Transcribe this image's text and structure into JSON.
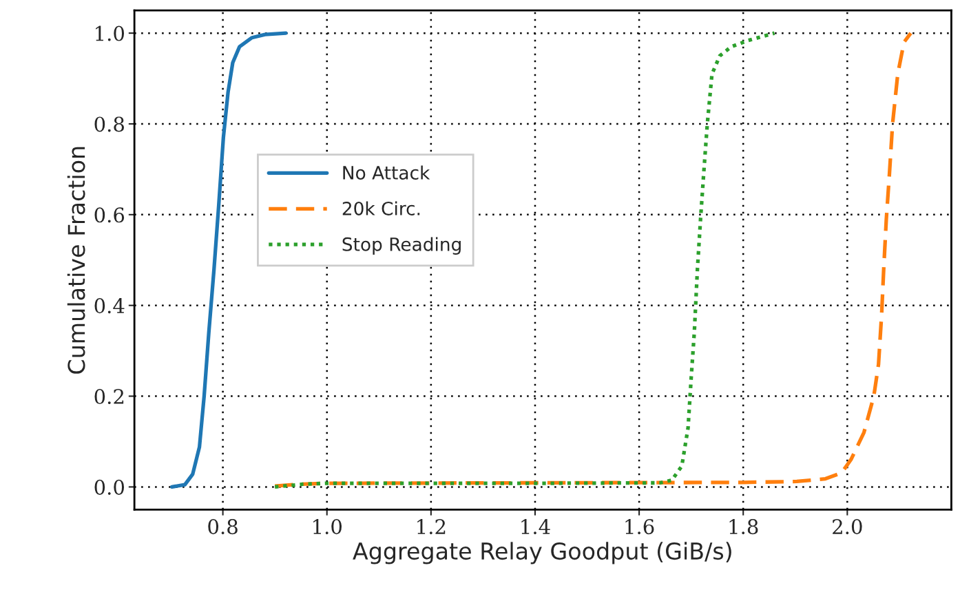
{
  "chart_data": {
    "type": "line",
    "xlabel": "Aggregate Relay Goodput (GiB/s)",
    "ylabel": "Cumulative Fraction",
    "series": [
      {
        "name": "No Attack",
        "color": "#1f77b4",
        "line_style": "solid",
        "x": [
          0.702,
          0.727,
          0.742,
          0.755,
          0.764,
          0.773,
          0.783,
          0.792,
          0.801,
          0.81,
          0.819,
          0.832,
          0.856,
          0.881,
          0.921
        ],
        "values": [
          0.0,
          0.005,
          0.028,
          0.088,
          0.2,
          0.34,
          0.48,
          0.62,
          0.77,
          0.87,
          0.935,
          0.97,
          0.99,
          0.997,
          1.0
        ]
      },
      {
        "name": "20k Circ.",
        "color": "#ff7f0e",
        "line_style": "dashed",
        "x": [
          0.9,
          0.95,
          1.0,
          1.4,
          1.8,
          1.903,
          1.958,
          1.989,
          2.007,
          2.032,
          2.051,
          2.06,
          2.066,
          2.07,
          2.075,
          2.081,
          2.087,
          2.097,
          2.109,
          2.122
        ],
        "values": [
          0.002,
          0.006,
          0.008,
          0.009,
          0.01,
          0.012,
          0.018,
          0.031,
          0.06,
          0.12,
          0.2,
          0.27,
          0.38,
          0.48,
          0.59,
          0.69,
          0.8,
          0.91,
          0.98,
          1.0
        ]
      },
      {
        "name": "Stop Reading",
        "color": "#2ca02c",
        "line_style": "dotted",
        "x": [
          0.9,
          0.954,
          1.0,
          1.4,
          1.64,
          1.663,
          1.682,
          1.694,
          1.7,
          1.706,
          1.712,
          1.718,
          1.724,
          1.731,
          1.74,
          1.755,
          1.777,
          1.81,
          1.86
        ],
        "values": [
          0.0,
          0.006,
          0.008,
          0.008,
          0.009,
          0.015,
          0.046,
          0.13,
          0.24,
          0.34,
          0.48,
          0.59,
          0.69,
          0.8,
          0.91,
          0.95,
          0.97,
          0.984,
          1.0
        ]
      }
    ],
    "xlim": [
      0.63,
      2.2
    ],
    "ylim": [
      -0.05,
      1.05
    ],
    "xticks": [
      {
        "value": 0.8,
        "label": "0.8"
      },
      {
        "value": 1.0,
        "label": "1.0"
      },
      {
        "value": 1.2,
        "label": "1.2"
      },
      {
        "value": 1.4,
        "label": "1.4"
      },
      {
        "value": 1.6,
        "label": "1.6"
      },
      {
        "value": 1.8,
        "label": "1.8"
      },
      {
        "value": 2.0,
        "label": "2.0"
      }
    ],
    "yticks": [
      {
        "value": 0.0,
        "label": "0.0"
      },
      {
        "value": 0.2,
        "label": "0.2"
      },
      {
        "value": 0.4,
        "label": "0.4"
      },
      {
        "value": 0.6,
        "label": "0.6"
      },
      {
        "value": 0.8,
        "label": "0.8"
      },
      {
        "value": 1.0,
        "label": "1.0"
      }
    ],
    "grid": true,
    "legend": "center left"
  }
}
